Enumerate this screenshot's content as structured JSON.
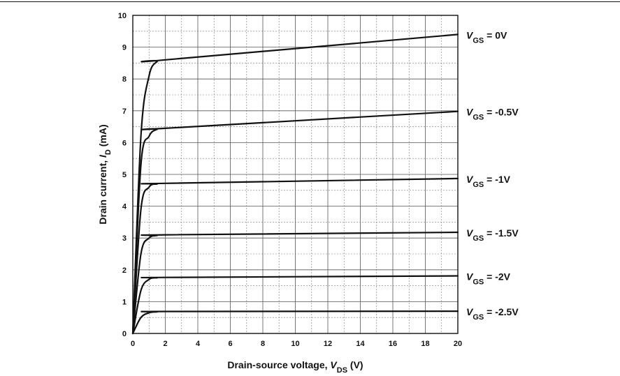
{
  "chart_data": {
    "type": "line",
    "title": "",
    "xlabel": {
      "main": "Drain-source voltage, ",
      "var": "V",
      "sub": "DS",
      "unit": " (V)"
    },
    "ylabel": {
      "main": "Drain current, ",
      "var": "I",
      "sub": "D",
      "unit": " (mA)"
    },
    "xlim": [
      0,
      20
    ],
    "ylim": [
      0,
      10
    ],
    "x_ticks": [
      "0",
      "2",
      "4",
      "6",
      "8",
      "10",
      "12",
      "14",
      "16",
      "18",
      "20"
    ],
    "y_ticks": [
      "0",
      "1",
      "2",
      "3",
      "4",
      "5",
      "6",
      "7",
      "8",
      "9",
      "10"
    ],
    "grid": true,
    "series": [
      {
        "var": "V",
        "sub": "GS",
        "value": " = 0V",
        "x": [
          0,
          0.5,
          1,
          1.5,
          2,
          20
        ],
        "y": [
          0,
          6.2,
          8.1,
          8.55,
          8.6,
          9.4
        ]
      },
      {
        "var": "V",
        "sub": "GS",
        "value": " = -0.5V",
        "x": [
          0,
          0.5,
          1,
          1.5,
          2,
          20
        ],
        "y": [
          0,
          5.3,
          6.2,
          6.42,
          6.45,
          6.98
        ]
      },
      {
        "var": "V",
        "sub": "GS",
        "value": " = -1V",
        "x": [
          0,
          0.5,
          1,
          1.5,
          2,
          20
        ],
        "y": [
          0,
          3.9,
          4.6,
          4.7,
          4.72,
          4.87
        ]
      },
      {
        "var": "V",
        "sub": "GS",
        "value": " = -1.5V",
        "x": [
          0,
          0.5,
          1,
          1.5,
          2,
          20
        ],
        "y": [
          0,
          2.5,
          3.0,
          3.08,
          3.1,
          3.18
        ]
      },
      {
        "var": "V",
        "sub": "GS",
        "value": " = -2V",
        "x": [
          0,
          0.5,
          1,
          1.5,
          2,
          20
        ],
        "y": [
          0,
          1.35,
          1.7,
          1.75,
          1.76,
          1.81
        ]
      },
      {
        "var": "V",
        "sub": "GS",
        "value": " = -2.5V",
        "x": [
          0,
          0.5,
          1,
          1.5,
          2,
          20
        ],
        "y": [
          0,
          0.5,
          0.65,
          0.68,
          0.69,
          0.7
        ]
      }
    ]
  }
}
